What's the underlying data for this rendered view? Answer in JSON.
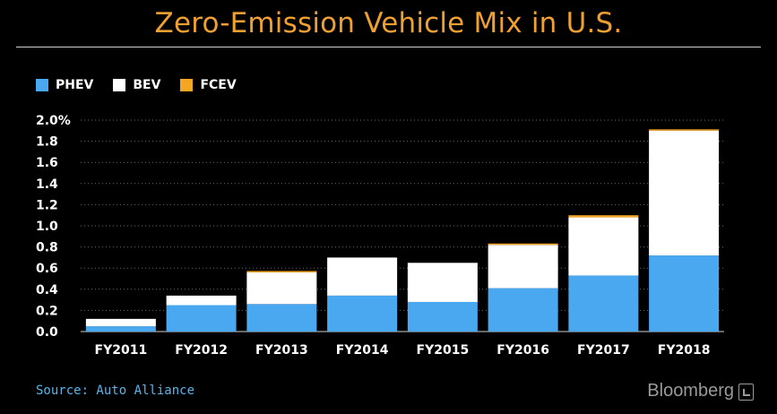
{
  "title": "Zero-Emission Vehicle Mix in U.S.",
  "source": "Source: Auto Alliance",
  "brand": "Bloomberg",
  "colors": {
    "background": "#000000",
    "title": "#f0a030",
    "PHEV": "#4aa8f0",
    "BEV": "#ffffff",
    "FCEV": "#f5a623",
    "source": "#5ab4e8"
  },
  "legend": [
    {
      "name": "PHEV",
      "color": "#4aa8f0"
    },
    {
      "name": "BEV",
      "color": "#ffffff"
    },
    {
      "name": "FCEV",
      "color": "#f5a623"
    }
  ],
  "chart_data": {
    "type": "bar",
    "stacked": true,
    "title": "Zero-Emission Vehicle Mix in U.S.",
    "categories": [
      "FY2011",
      "FY2012",
      "FY2013",
      "FY2014",
      "FY2015",
      "FY2016",
      "FY2017",
      "FY2018"
    ],
    "series": [
      {
        "name": "PHEV",
        "color": "#4aa8f0",
        "values": [
          0.05,
          0.25,
          0.26,
          0.34,
          0.28,
          0.41,
          0.53,
          0.72
        ]
      },
      {
        "name": "BEV",
        "color": "#ffffff",
        "values": [
          0.07,
          0.09,
          0.3,
          0.36,
          0.37,
          0.41,
          0.55,
          1.18
        ]
      },
      {
        "name": "FCEV",
        "color": "#f5a623",
        "values": [
          0.0,
          0.0,
          0.01,
          0.0,
          0.0,
          0.01,
          0.02,
          0.01
        ]
      }
    ],
    "yticks": [
      "0.0",
      "0.2",
      "0.4",
      "0.6",
      "0.8",
      "1.0",
      "1.2",
      "1.4",
      "1.6",
      "1.8",
      "2.0%"
    ],
    "ylim": [
      0,
      2.0
    ],
    "grid": true,
    "legend_position": "top-left"
  }
}
